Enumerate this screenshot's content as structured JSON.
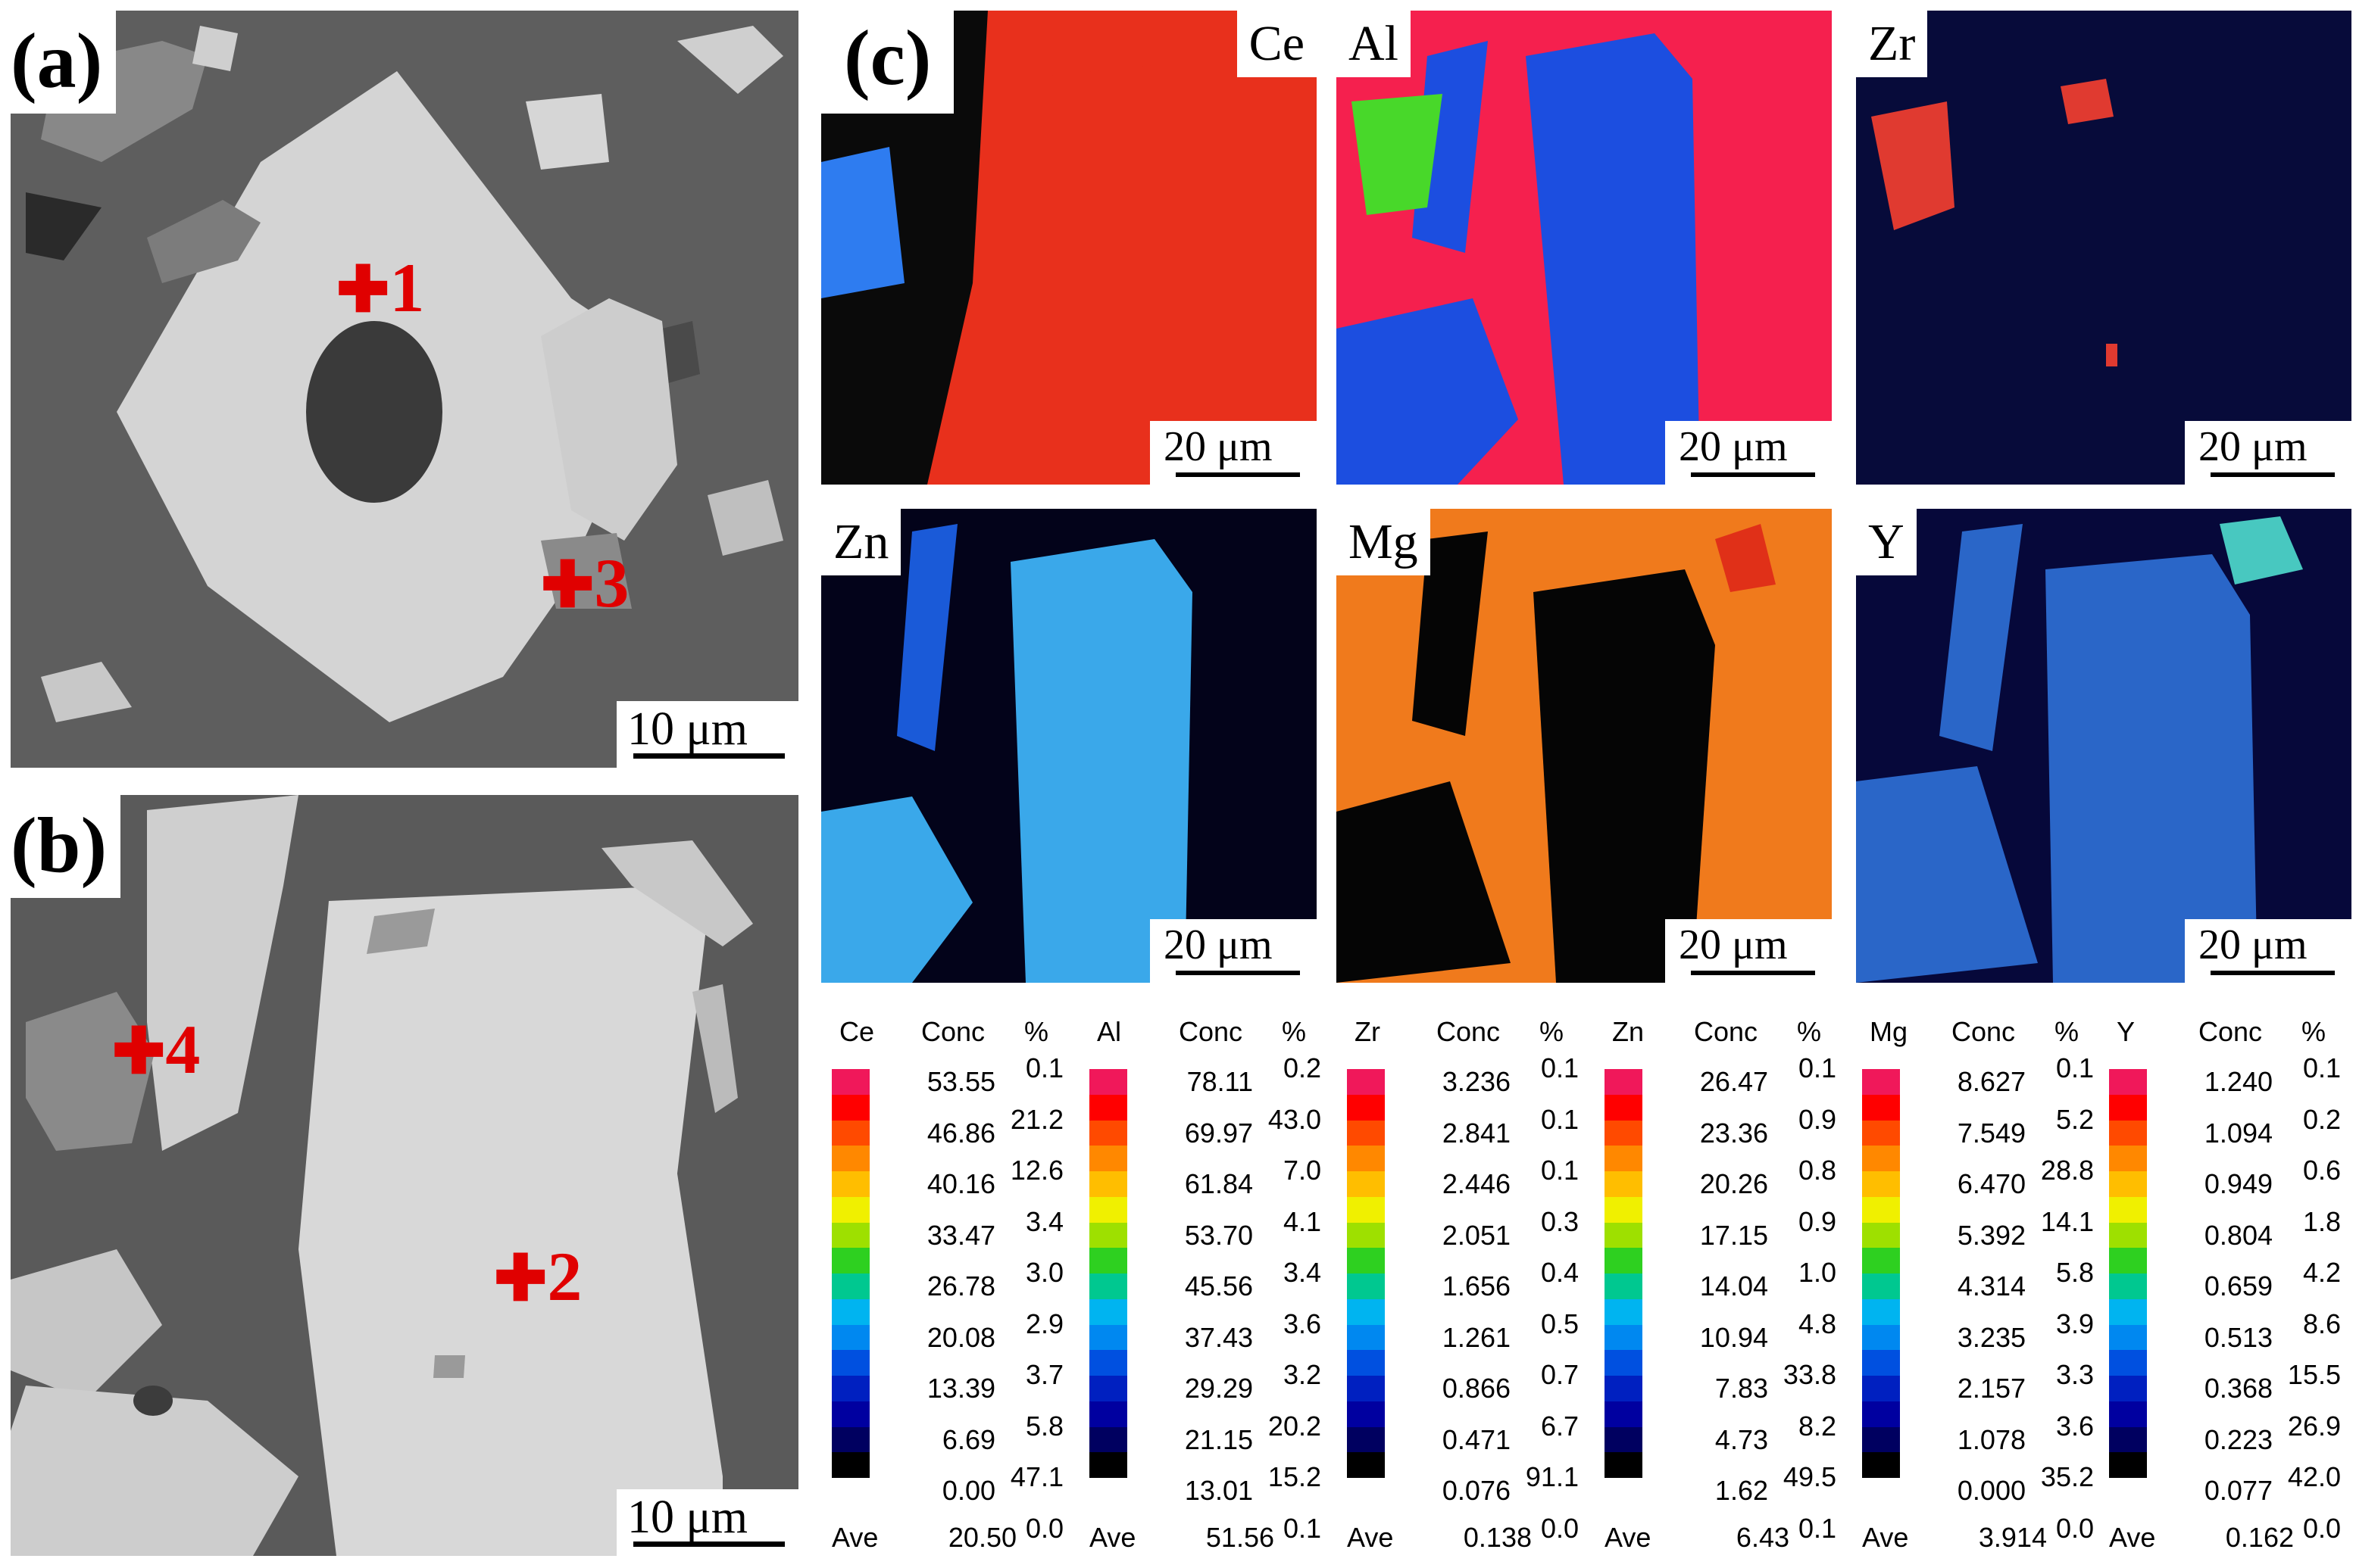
{
  "panels": {
    "a": {
      "label": "(a)",
      "scale": "10 μm",
      "markers": [
        {
          "num": "1"
        },
        {
          "num": "3"
        }
      ]
    },
    "b": {
      "label": "(b)",
      "scale": "10 μm",
      "markers": [
        {
          "num": "4"
        },
        {
          "num": "2"
        }
      ]
    },
    "c": {
      "label": "(c)"
    }
  },
  "maps": [
    {
      "element": "Ce",
      "scale": "20 μm",
      "base_color": "#e8301c",
      "mid_color": "#0a0a0a",
      "accent_color": "#2e7cf0"
    },
    {
      "element": "Al",
      "scale": "20 μm",
      "base_color": "#f5204e",
      "mid_color": "#1c4ee0",
      "accent_color": "#48d82a"
    },
    {
      "element": "Zr",
      "scale": "20 μm",
      "base_color": "#070b3a",
      "mid_color": "#0a145a",
      "accent_color": "#e03a30"
    },
    {
      "element": "Zn",
      "scale": "20 μm",
      "base_color": "#03031a",
      "mid_color": "#3aa8ea",
      "accent_color": "#1a5ad8"
    },
    {
      "element": "Mg",
      "scale": "20 μm",
      "base_color": "#f07a1c",
      "mid_color": "#050505",
      "accent_color": "#e03018"
    },
    {
      "element": "Y",
      "scale": "20 μm",
      "base_color": "#06083a",
      "mid_color": "#2a66c8",
      "accent_color": "#48c8c0"
    }
  ],
  "colorbars": {
    "conc_header": "Conc",
    "pct_header": "%",
    "ave_label": "Ave",
    "colors": [
      "#f0185a",
      "#ff0000",
      "#ff4a00",
      "#ff8800",
      "#ffbe00",
      "#f0f000",
      "#9ee000",
      "#2ed020",
      "#00c890",
      "#00b4f0",
      "#0088f0",
      "#0050e0",
      "#0020c0",
      "#0000a0",
      "#000060",
      "#000000"
    ],
    "items": [
      {
        "element": "Ce",
        "conc": [
          "53.55",
          "46.86",
          "40.16",
          "33.47",
          "26.78",
          "20.08",
          "13.39",
          "6.69",
          "0.00"
        ],
        "pct": [
          "0.1",
          "21.2",
          "12.6",
          "3.4",
          "3.0",
          "2.9",
          "3.7",
          "5.8",
          "47.1",
          "0.0"
        ],
        "ave": "20.50"
      },
      {
        "element": "Al",
        "conc": [
          "78.11",
          "69.97",
          "61.84",
          "53.70",
          "45.56",
          "37.43",
          "29.29",
          "21.15",
          "13.01"
        ],
        "pct": [
          "0.2",
          "43.0",
          "7.0",
          "4.1",
          "3.4",
          "3.6",
          "3.2",
          "20.2",
          "15.2",
          "0.1"
        ],
        "ave": "51.56"
      },
      {
        "element": "Zr",
        "conc": [
          "3.236",
          "2.841",
          "2.446",
          "2.051",
          "1.656",
          "1.261",
          "0.866",
          "0.471",
          "0.076"
        ],
        "pct": [
          "0.1",
          "0.1",
          "0.1",
          "0.3",
          "0.4",
          "0.5",
          "0.7",
          "6.7",
          "91.1",
          "0.0"
        ],
        "ave": "0.138"
      },
      {
        "element": "Zn",
        "conc": [
          "26.47",
          "23.36",
          "20.26",
          "17.15",
          "14.04",
          "10.94",
          "7.83",
          "4.73",
          "1.62"
        ],
        "pct": [
          "0.1",
          "0.9",
          "0.8",
          "0.9",
          "1.0",
          "4.8",
          "33.8",
          "8.2",
          "49.5",
          "0.1"
        ],
        "ave": "6.43"
      },
      {
        "element": "Mg",
        "conc": [
          "8.627",
          "7.549",
          "6.470",
          "5.392",
          "4.314",
          "3.235",
          "2.157",
          "1.078",
          "0.000"
        ],
        "pct": [
          "0.1",
          "5.2",
          "28.8",
          "14.1",
          "5.8",
          "3.9",
          "3.3",
          "3.6",
          "35.2",
          "0.0"
        ],
        "ave": "3.914"
      },
      {
        "element": "Y",
        "conc": [
          "1.240",
          "1.094",
          "0.949",
          "0.804",
          "0.659",
          "0.513",
          "0.368",
          "0.223",
          "0.077"
        ],
        "pct": [
          "0.1",
          "0.2",
          "0.6",
          "1.8",
          "4.2",
          "8.6",
          "15.5",
          "26.9",
          "42.0",
          "0.0"
        ],
        "ave": "0.162"
      }
    ]
  }
}
